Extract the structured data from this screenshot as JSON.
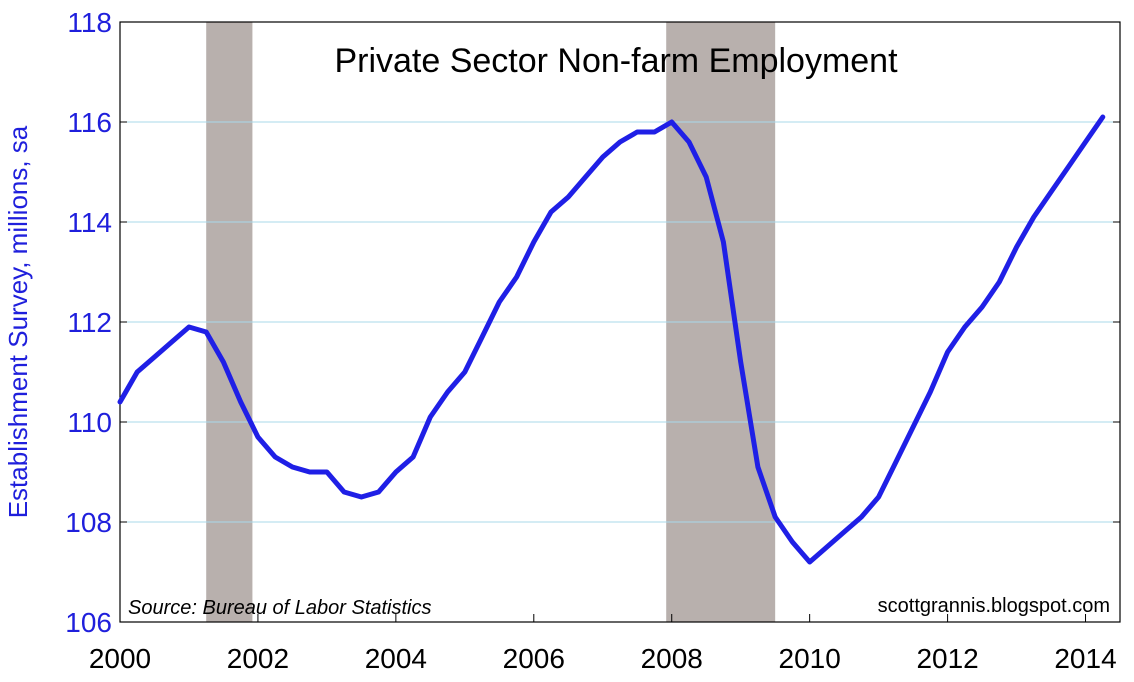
{
  "chart_data": {
    "type": "line",
    "title": "Private Sector Non-farm Employment",
    "ylabel": "Establishment Survey, millions, sa",
    "xlabel": "",
    "source": "Source:  Bureau of Labor Statistics",
    "credit": "scottgrannis.blogspot.com",
    "xlim": [
      2000,
      2014.5
    ],
    "ylim": [
      106,
      118
    ],
    "x_ticks": [
      "2000",
      "2002",
      "2004",
      "2006",
      "2008",
      "2010",
      "2012",
      "2014"
    ],
    "y_ticks": [
      "106",
      "108",
      "110",
      "112",
      "114",
      "116",
      "118"
    ],
    "grid": "horizontal",
    "recessions": [
      [
        2001.25,
        2001.92
      ],
      [
        2007.92,
        2009.5
      ]
    ],
    "colors": {
      "line": "#1f1fe6",
      "recession": "#b8b0ad",
      "gridline": "#a8d8ea",
      "axis_text": "#1f1fdc"
    },
    "series": [
      {
        "x": [
          2000.0,
          2000.25,
          2000.5,
          2000.75,
          2001.0,
          2001.25,
          2001.5,
          2001.75,
          2002.0,
          2002.25,
          2002.5,
          2002.75,
          2003.0,
          2003.25,
          2003.5,
          2003.75,
          2004.0,
          2004.25,
          2004.5,
          2004.75,
          2005.0,
          2005.25,
          2005.5,
          2005.75,
          2006.0,
          2006.25,
          2006.5,
          2006.75,
          2007.0,
          2007.25,
          2007.5,
          2007.75,
          2008.0,
          2008.25,
          2008.5,
          2008.75,
          2009.0,
          2009.25,
          2009.5,
          2009.75,
          2010.0,
          2010.25,
          2010.5,
          2010.75,
          2011.0,
          2011.25,
          2011.5,
          2011.75,
          2012.0,
          2012.25,
          2012.5,
          2012.75,
          2013.0,
          2013.25,
          2013.5,
          2013.75,
          2014.0,
          2014.25
        ],
        "values": [
          110.4,
          111.0,
          111.3,
          111.6,
          111.9,
          111.8,
          111.2,
          110.4,
          109.7,
          109.3,
          109.1,
          109.0,
          109.0,
          108.6,
          108.5,
          108.6,
          109.0,
          109.3,
          110.1,
          110.6,
          111.0,
          111.7,
          112.4,
          112.9,
          113.6,
          114.2,
          114.5,
          114.9,
          115.3,
          115.6,
          115.8,
          115.8,
          116.0,
          115.6,
          114.9,
          113.6,
          111.2,
          109.1,
          108.1,
          107.6,
          107.2,
          107.5,
          107.8,
          108.1,
          108.5,
          109.2,
          109.9,
          110.6,
          111.4,
          111.9,
          112.3,
          112.8,
          113.5,
          114.1,
          114.6,
          115.1,
          115.6,
          116.1
        ]
      }
    ]
  }
}
